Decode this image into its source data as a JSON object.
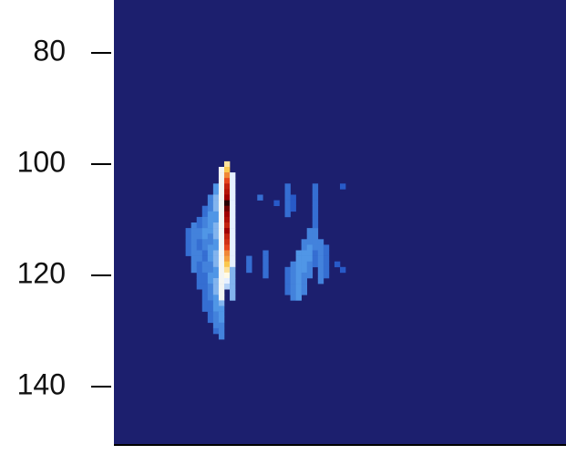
{
  "chart_data": {
    "type": "heatmap",
    "ylim": [
      70.5,
      150.5
    ],
    "y_inverted": true,
    "yticks": [
      80,
      100,
      120,
      140
    ],
    "xlim": [
      0,
      82
    ],
    "background_color": "#1c1f6e",
    "columns": [
      {
        "x": 13,
        "y0": 112,
        "values": [
          0.3,
          0.3,
          0.3,
          0.3,
          0.3
        ]
      },
      {
        "x": 14,
        "y0": 111,
        "values": [
          0.35,
          0.35,
          0.35,
          0.35,
          0.35,
          0.35,
          0.35,
          0.35,
          0.35
        ]
      },
      {
        "x": 15,
        "y0": 110,
        "values": [
          0.3,
          0.3,
          0.35,
          0.35,
          0.3,
          0.3,
          0.35,
          0.35,
          0.3,
          0.3,
          0.3,
          0.3,
          0.3
        ]
      },
      {
        "x": 16,
        "y0": 108,
        "values": [
          0.3,
          0.3,
          0.35,
          0.35,
          0.4,
          0.4,
          0.35,
          0.35,
          0.3,
          0.3,
          0.35,
          0.35,
          0.3,
          0.3,
          0.3,
          0.3,
          0.3,
          0.3,
          0.3
        ]
      },
      {
        "x": 17,
        "y0": 106,
        "values": [
          0.35,
          0.35,
          0.35,
          0.4,
          0.4,
          0.4,
          0.4,
          0.35,
          0.35,
          0.4,
          0.4,
          0.4,
          0.35,
          0.35,
          0.4,
          0.4,
          0.35,
          0.35,
          0.35,
          0.3,
          0.3,
          0.3,
          0.3
        ]
      },
      {
        "x": 18,
        "y0": 104,
        "values": [
          0.4,
          0.4,
          0.45,
          0.45,
          0.45,
          0.4,
          0.4,
          0.45,
          0.45,
          0.45,
          0.4,
          0.4,
          0.45,
          0.45,
          0.45,
          0.4,
          0.4,
          0.45,
          0.45,
          0.45,
          0.4,
          0.4,
          0.4,
          0.35,
          0.35,
          0.35,
          0.3
        ]
      },
      {
        "x": 19,
        "y0": 101,
        "values": [
          0.6,
          0.6,
          0.6,
          0.6,
          0.6,
          0.6,
          0.6,
          0.6,
          0.6,
          0.6,
          0.6,
          0.6,
          0.6,
          0.6,
          0.6,
          0.6,
          0.6,
          0.6,
          0.6,
          0.6,
          0.6,
          0.6,
          0.6,
          0.6,
          0.45,
          0.4,
          0.4,
          0.4,
          0.35,
          0.35,
          0.35
        ]
      },
      {
        "x": 20,
        "y0": 100,
        "values": [
          0.7,
          0.75,
          0.8,
          0.85,
          0.9,
          0.92,
          0.95,
          1.0,
          0.97,
          0.95,
          0.93,
          0.9,
          0.95,
          0.9,
          0.88,
          0.85,
          0.8,
          0.78,
          0.75,
          0.7,
          0.65,
          0.55,
          0.5
        ]
      },
      {
        "x": 21,
        "y0": 102,
        "values": [
          0.55,
          0.55,
          0.55,
          0.55,
          0.55,
          0.55,
          0.55,
          0.55,
          0.55,
          0.55,
          0.55,
          0.55,
          0.55,
          0.55,
          0.55,
          0.55,
          0.55,
          0.45,
          0.45,
          0.45,
          0.45,
          0.45,
          0.45
        ]
      },
      {
        "x": 24,
        "y0": 117,
        "values": [
          0.3,
          0.3,
          0.3
        ]
      },
      {
        "x": 26,
        "y0": 106,
        "values": [
          0.3
        ]
      },
      {
        "x": 27,
        "y0": 116,
        "values": [
          0.3,
          0.3,
          0.3,
          0.3,
          0.3
        ]
      },
      {
        "x": 29,
        "y0": 107,
        "values": [
          0.25
        ]
      },
      {
        "x": 31,
        "y0": 104,
        "values": [
          0.3,
          0.3,
          0.3,
          0.3,
          0.3,
          0.3
        ]
      },
      {
        "x": 31,
        "y0": 119,
        "values": [
          0.3,
          0.3,
          0.3,
          0.3,
          0.3
        ]
      },
      {
        "x": 32,
        "y0": 106,
        "values": [
          0.25,
          0.25,
          0.25
        ]
      },
      {
        "x": 32,
        "y0": 118,
        "values": [
          0.35,
          0.35,
          0.35,
          0.35,
          0.35,
          0.35,
          0.35
        ]
      },
      {
        "x": 33,
        "y0": 116,
        "values": [
          0.4,
          0.4,
          0.4,
          0.4,
          0.4,
          0.4,
          0.4,
          0.4,
          0.4
        ]
      },
      {
        "x": 34,
        "y0": 114,
        "values": [
          0.35,
          0.35,
          0.4,
          0.4,
          0.4,
          0.4,
          0.35,
          0.35,
          0.35,
          0.35
        ]
      },
      {
        "x": 35,
        "y0": 112,
        "values": [
          0.35,
          0.35,
          0.35,
          0.4,
          0.4,
          0.4,
          0.35,
          0.35,
          0.35
        ]
      },
      {
        "x": 36,
        "y0": 104,
        "values": [
          0.3,
          0.3,
          0.3,
          0.3,
          0.3,
          0.3,
          0.3,
          0.3,
          0.35,
          0.35,
          0.35,
          0.35,
          0.3,
          0.3,
          0.3
        ]
      },
      {
        "x": 37,
        "y0": 114,
        "values": [
          0.35,
          0.35,
          0.35,
          0.35,
          0.35,
          0.35,
          0.35,
          0.35
        ]
      },
      {
        "x": 38,
        "y0": 115,
        "values": [
          0.3,
          0.3,
          0.3,
          0.3,
          0.3,
          0.3
        ]
      },
      {
        "x": 40,
        "y0": 118,
        "values": [
          0.25
        ]
      },
      {
        "x": 41,
        "y0": 104,
        "values": [
          0.25
        ]
      },
      {
        "x": 41,
        "y0": 119,
        "values": [
          0.25
        ]
      }
    ]
  }
}
